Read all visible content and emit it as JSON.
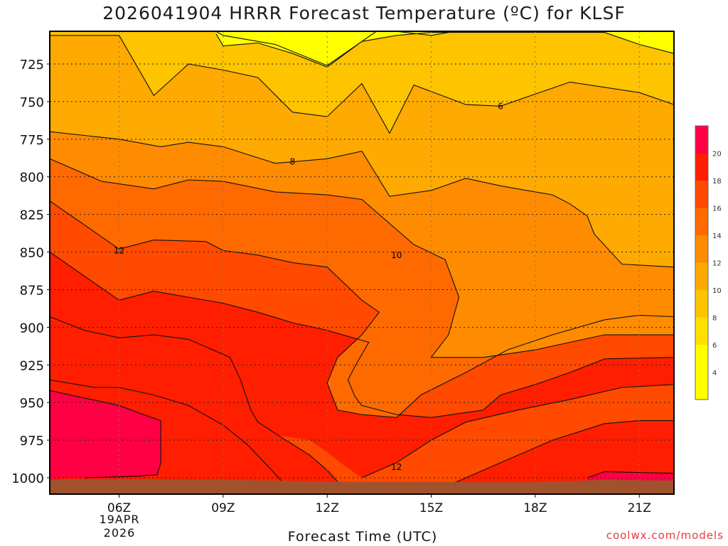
{
  "title": "2026041904 HRRR Forecast Temperature (ºC) for KLSF",
  "credit": "coolwx.com/models",
  "chart_data": {
    "type": "heatmap",
    "subtype": "time-height contour cross-section",
    "title": "2026041904 HRRR Forecast Temperature (ºC) for KLSF",
    "xlabel": "Forecast Time (UTC)",
    "ylabel": "",
    "x_ticks": [
      "06Z",
      "09Z",
      "12Z",
      "15Z",
      "18Z",
      "21Z"
    ],
    "x_tick_hours": [
      6,
      9,
      12,
      15,
      18,
      21
    ],
    "date_label": [
      "19APR",
      "2026"
    ],
    "xlim_hours": [
      4,
      22
    ],
    "y_ticks": [
      725,
      750,
      775,
      800,
      825,
      850,
      875,
      900,
      925,
      950,
      975,
      1000
    ],
    "ylim_hpa": [
      1000,
      705
    ],
    "y_axis": "pressure (hPa), decreasing upward",
    "grid": true,
    "colorbar": {
      "labels": [
        4,
        6,
        8,
        10,
        12,
        14,
        16,
        18,
        20
      ],
      "colors": [
        "#ffff00",
        "#ffe000",
        "#ffc400",
        "#ffaa00",
        "#ff8c00",
        "#ff6a00",
        "#ff4a00",
        "#ff1e00",
        "#ff0044"
      ]
    },
    "contours": [
      {
        "value": 6,
        "label": "6",
        "hour_label": 17.0
      },
      {
        "value": 8,
        "label": "8",
        "hour_label": 11.0
      },
      {
        "value": 10,
        "label": "10",
        "hour_label": 14.0
      },
      {
        "value": 12,
        "label": "12",
        "hour_label": 6.0
      },
      {
        "value": 12,
        "label": "12",
        "hour_label": 14.0
      }
    ],
    "samples": [
      {
        "hour": 4.0,
        "t700": 5.3,
        "t725": 6.5,
        "t750": 7.8,
        "t775": 9.6,
        "t800": 10.3,
        "t825": 11.9,
        "t850": 13.6,
        "t875": 14.9,
        "t900": 16.4,
        "t925": 17.7,
        "t950": 18.9,
        "t975": 20.8,
        "t1000": 21.5
      },
      {
        "hour": 6.0,
        "t700": 6.3,
        "t725": 6.8,
        "t750": 7.9,
        "t775": 10.0,
        "t800": 10.9,
        "t825": 11.4,
        "t850": 12.0,
        "t875": 13.7,
        "t900": 15.1,
        "t925": 16.5,
        "t950": 18.5,
        "t975": 20.3,
        "t1000": 21.1
      },
      {
        "hour": 9.0,
        "t700": 4.8,
        "t725": 5.4,
        "t750": 6.8,
        "t775": 8.4,
        "t800": 9.6,
        "t825": 10.5,
        "t850": 12.3,
        "t875": 13.2,
        "t900": 14.4,
        "t925": 16.4,
        "t950": 17.2,
        "t975": 18.3,
        "t1000": 19.0
      },
      {
        "hour": 12.0,
        "t700": 3.6,
        "t725": 4.7,
        "t750": 6.4,
        "t775": 7.5,
        "t800": 8.5,
        "t825": 10.0,
        "t850": 11.2,
        "t875": 12.1,
        "t900": 12.8,
        "t925": 13.0,
        "t950": 13.4,
        "t975": 14.1,
        "t1000": 16.5
      },
      {
        "hour": 15.0,
        "t700": 4.8,
        "t725": 5.4,
        "t750": 6.0,
        "t775": 7.0,
        "t800": 7.9,
        "t825": 8.8,
        "t850": 9.9,
        "t875": 10.6,
        "t900": 10.8,
        "t925": 11.3,
        "t950": 11.7,
        "t975": 12.5,
        "t1000": 14.8
      },
      {
        "hour": 18.0,
        "t700": 5.1,
        "t725": 5.8,
        "t750": 6.5,
        "t775": 7.0,
        "t800": 7.5,
        "t825": 7.8,
        "t850": 8.3,
        "t875": 9.6,
        "t900": 11.5,
        "t925": 12.8,
        "t950": 14.3,
        "t975": 16.4,
        "t1000": 19.0
      },
      {
        "hour": 22.0,
        "t700": 4.5,
        "t725": 5.0,
        "t750": 5.9,
        "t775": 6.5,
        "t800": 7.0,
        "t825": 7.4,
        "t850": 8.0,
        "t875": 9.2,
        "t900": 12.0,
        "t925": 14.0,
        "t950": 15.8,
        "t975": 17.9,
        "t1000": 20.2
      }
    ]
  }
}
